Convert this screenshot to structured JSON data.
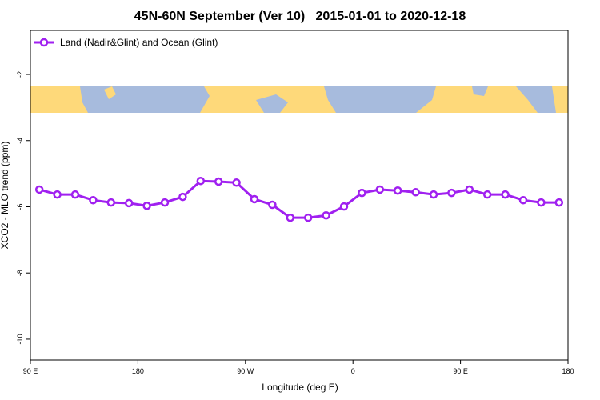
{
  "chart_data": {
    "type": "line",
    "title": "45N-60N September (Ver 10)   2015-01-01 to 2020-12-18",
    "xlabel": "Longitude (deg E)",
    "ylabel": "XCO2 - MLO trend (ppm)",
    "xlim": [
      90,
      540
    ],
    "ylim": [
      -10.63,
      -0.67
    ],
    "xticks": [
      {
        "value": 90,
        "label": "90 E"
      },
      {
        "value": 180,
        "label": "180"
      },
      {
        "value": 270,
        "label": "90 W"
      },
      {
        "value": 360,
        "label": "0"
      },
      {
        "value": 450,
        "label": "90 E"
      },
      {
        "value": 540,
        "label": "180"
      }
    ],
    "yticks": [
      -10,
      -8,
      -6,
      -4,
      -2
    ],
    "legend": "top-left",
    "x": [
      97.5,
      112.5,
      127.5,
      142.5,
      157.5,
      172.5,
      187.5,
      202.5,
      217.5,
      232.5,
      247.5,
      262.5,
      277.5,
      292.5,
      307.5,
      322.5,
      337.5,
      352.5,
      367.5,
      382.5,
      397.5,
      412.5,
      427.5,
      442.5,
      457.5,
      472.5,
      487.5,
      502.5,
      517.5,
      532.5
    ],
    "series": [
      {
        "name": "Land (Nadir&Glint) and Ocean (Glint)",
        "color": "#a020f0",
        "values": [
          -5.48,
          -5.63,
          -5.63,
          -5.8,
          -5.87,
          -5.89,
          -5.97,
          -5.87,
          -5.7,
          -5.22,
          -5.24,
          -5.27,
          -5.77,
          -5.94,
          -6.33,
          -6.33,
          -6.26,
          -5.99,
          -5.58,
          -5.48,
          -5.51,
          -5.56,
          -5.63,
          -5.58,
          -5.48,
          -5.63,
          -5.63,
          -5.8,
          -5.87,
          -5.87
        ]
      }
    ]
  }
}
